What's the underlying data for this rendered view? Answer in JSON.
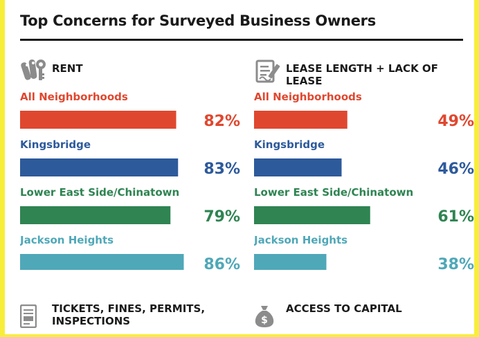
{
  "title": "Top Concerns for Surveyed Business Owners",
  "colors": {
    "all": "#e0472f",
    "kingsbridge": "#2d5a9b",
    "les": "#2f8452",
    "jackson": "#4fa8b8",
    "text": "#1a1a1a",
    "border": "#f7ee3a"
  },
  "icons": {
    "rent": "keys-icon",
    "lease": "contract-icon",
    "tickets": "ticket-document-icon",
    "capital": "money-bag-icon"
  },
  "chart_data": [
    {
      "type": "bar",
      "title": "RENT",
      "categories": [
        "All Neighborhoods",
        "Kingsbridge",
        "Lower East Side/Chinatown",
        "Jackson Heights"
      ],
      "values": [
        82,
        83,
        79,
        86
      ],
      "labels": [
        "82%",
        "83%",
        "79%",
        "86%"
      ],
      "ylim": [
        0,
        100
      ],
      "orientation": "horizontal"
    },
    {
      "type": "bar",
      "title": "LEASE LENGTH + LACK OF LEASE",
      "categories": [
        "All Neighborhoods",
        "Kingsbridge",
        "Lower East Side/Chinatown",
        "Jackson Heights"
      ],
      "values": [
        49,
        46,
        61,
        38
      ],
      "labels": [
        "49%",
        "46%",
        "61%",
        "38%"
      ],
      "ylim": [
        0,
        100
      ],
      "orientation": "horizontal"
    }
  ],
  "bottom": {
    "tickets": "TICKETS, FINES, PERMITS, INSPECTIONS",
    "capital": "ACCESS TO CAPITAL"
  }
}
